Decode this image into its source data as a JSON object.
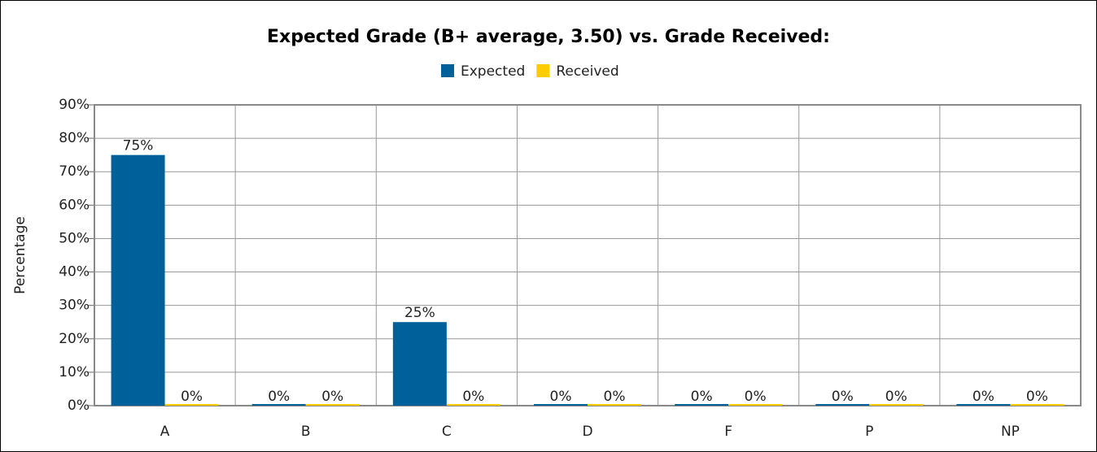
{
  "chart_data": {
    "type": "bar",
    "title": "Expected Grade (B+ average, 3.50) vs. Grade Received:",
    "y_label": "Percentage",
    "categories": [
      "A",
      "B",
      "C",
      "D",
      "F",
      "P",
      "NP"
    ],
    "series": [
      {
        "name": "Expected",
        "color": "#00609a",
        "values": [
          75,
          0,
          25,
          0,
          0,
          0,
          0
        ],
        "value_labels": [
          "75%",
          "0%",
          "25%",
          "0%",
          "0%",
          "0%",
          "0%"
        ]
      },
      {
        "name": "Received",
        "color": "#ffcc00",
        "values": [
          0,
          0,
          0,
          0,
          0,
          0,
          0
        ],
        "value_labels": [
          "0%",
          "0%",
          "0%",
          "0%",
          "0%",
          "0%",
          "0%"
        ]
      }
    ],
    "ylim": [
      0,
      90
    ],
    "yticks": [
      {
        "value": 0,
        "label": "0%"
      },
      {
        "value": 10,
        "label": "10%"
      },
      {
        "value": 20,
        "label": "20%"
      },
      {
        "value": 30,
        "label": "30%"
      },
      {
        "value": 40,
        "label": "40%"
      },
      {
        "value": 50,
        "label": "50%"
      },
      {
        "value": 60,
        "label": "60%"
      },
      {
        "value": 70,
        "label": "70%"
      },
      {
        "value": 80,
        "label": "80%"
      },
      {
        "value": 90,
        "label": "90%"
      }
    ],
    "grid": true,
    "legend": "top"
  }
}
